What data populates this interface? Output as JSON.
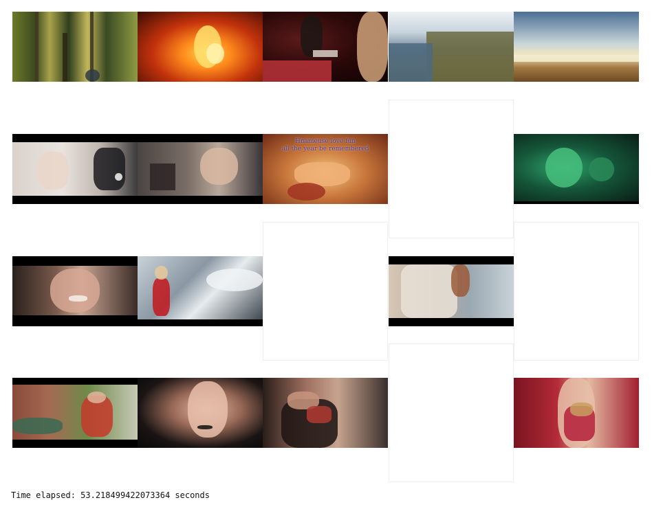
{
  "status": {
    "elapsed_text": "Time elapsed: 53.218499422073364 seconds"
  },
  "grid": {
    "rows": [
      {
        "cells": [
          {
            "name": "thumb-forest-hiker",
            "blank": false,
            "scene": "forest"
          },
          {
            "name": "thumb-campfire",
            "blank": false,
            "scene": "fire"
          },
          {
            "name": "thumb-band-concert",
            "blank": false,
            "scene": "concert"
          },
          {
            "name": "thumb-coastline-aerial",
            "blank": false,
            "scene": "coast"
          },
          {
            "name": "thumb-beach-kites",
            "blank": false,
            "scene": "beach"
          }
        ]
      },
      {
        "cells": [
          {
            "name": "thumb-wedding-couple",
            "blank": false,
            "scene": "wedding"
          },
          {
            "name": "thumb-bride-veil",
            "blank": false,
            "scene": "bride"
          },
          {
            "name": "thumb-painting-lyrics",
            "blank": false,
            "scene": "painting",
            "caption": [
              "Hnameuse love fun",
              "all the year be remembered"
            ]
          },
          {
            "name": "thumb-blank",
            "blank": true,
            "scene": ""
          },
          {
            "name": "thumb-green-ornament",
            "blank": false,
            "scene": "green"
          }
        ]
      },
      {
        "cells": [
          {
            "name": "thumb-smiling-woman",
            "blank": false,
            "scene": "smile"
          },
          {
            "name": "thumb-red-dress-jet",
            "blank": false,
            "scene": "jet"
          },
          {
            "name": "thumb-blank",
            "blank": true,
            "scene": ""
          },
          {
            "name": "thumb-lace-dress",
            "blank": false,
            "scene": "lace"
          },
          {
            "name": "thumb-blank",
            "blank": true,
            "scene": ""
          }
        ]
      },
      {
        "cells": [
          {
            "name": "thumb-woman-outdoor",
            "blank": false,
            "scene": "outdoor"
          },
          {
            "name": "thumb-makeup-artist",
            "blank": false,
            "scene": "makeup"
          },
          {
            "name": "thumb-henna-model",
            "blank": false,
            "scene": "henna"
          },
          {
            "name": "thumb-blank",
            "blank": true,
            "scene": ""
          },
          {
            "name": "thumb-saree-bride",
            "blank": false,
            "scene": "saree"
          }
        ]
      }
    ]
  },
  "colors": {
    "background": "#ffffff",
    "letterbox": "#000000"
  }
}
